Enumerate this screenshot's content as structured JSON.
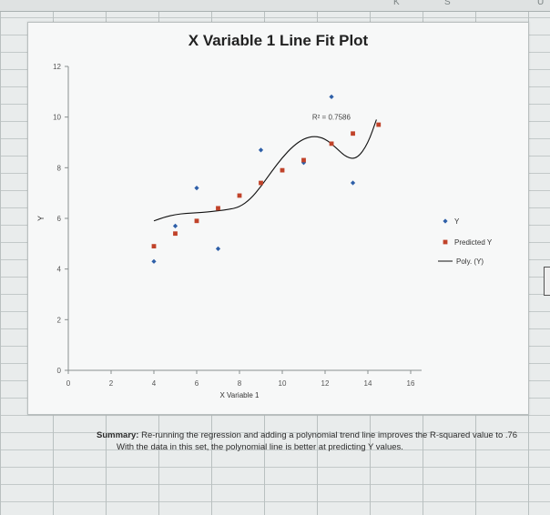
{
  "spreadsheet": {
    "column_letters": [
      "K",
      "S",
      "U"
    ]
  },
  "chart_data": {
    "type": "scatter",
    "title": "X Variable 1 Line Fit Plot",
    "xlabel": "X Variable 1",
    "ylabel": "Y",
    "xlim": [
      0,
      16
    ],
    "ylim": [
      0,
      12
    ],
    "x_ticks": [
      "0",
      "2",
      "4",
      "6",
      "8",
      "10",
      "12",
      "14",
      "16"
    ],
    "y_ticks": [
      "0",
      "2",
      "4",
      "6",
      "8",
      "10",
      "12"
    ],
    "grid": false,
    "legend_position": "right",
    "trendline": {
      "type": "polynomial",
      "label": "Poly. (Y)",
      "r_squared_label": "R² = 0.7586",
      "points": [
        [
          4.0,
          5.9
        ],
        [
          4.5,
          6.05
        ],
        [
          5.0,
          6.15
        ],
        [
          5.5,
          6.2
        ],
        [
          6.0,
          6.22
        ],
        [
          6.5,
          6.25
        ],
        [
          7.0,
          6.3
        ],
        [
          7.5,
          6.35
        ],
        [
          8.0,
          6.45
        ],
        [
          8.5,
          6.75
        ],
        [
          9.0,
          7.25
        ],
        [
          9.5,
          7.85
        ],
        [
          10.0,
          8.4
        ],
        [
          10.5,
          8.85
        ],
        [
          11.0,
          9.15
        ],
        [
          11.5,
          9.25
        ],
        [
          12.0,
          9.15
        ],
        [
          12.5,
          8.8
        ],
        [
          13.0,
          8.4
        ],
        [
          13.5,
          8.35
        ],
        [
          14.0,
          8.95
        ],
        [
          14.4,
          9.9
        ]
      ]
    },
    "series": [
      {
        "name": "Y",
        "color": "#2e5fa8",
        "marker": "diamond",
        "x": [
          4,
          5,
          6,
          7,
          9,
          11,
          12.3,
          13.3
        ],
        "y": [
          4.3,
          5.7,
          7.2,
          4.8,
          8.7,
          8.2,
          10.8,
          7.4
        ]
      },
      {
        "name": "Predicted Y",
        "color": "#c0432a",
        "marker": "square",
        "x": [
          4,
          5,
          6,
          7,
          8,
          9,
          10,
          11,
          12.3,
          13.3,
          14.5
        ],
        "y": [
          4.9,
          5.4,
          5.9,
          6.4,
          6.9,
          7.4,
          7.9,
          8.3,
          8.95,
          9.35,
          9.7
        ]
      }
    ]
  },
  "summary": {
    "label": "Summary:",
    "line1": " Re-running the regression and adding a polynomial trend line improves the R-squared value to .76",
    "line2": "With the data in this set, the polynomial line is better at predicting Y values."
  }
}
